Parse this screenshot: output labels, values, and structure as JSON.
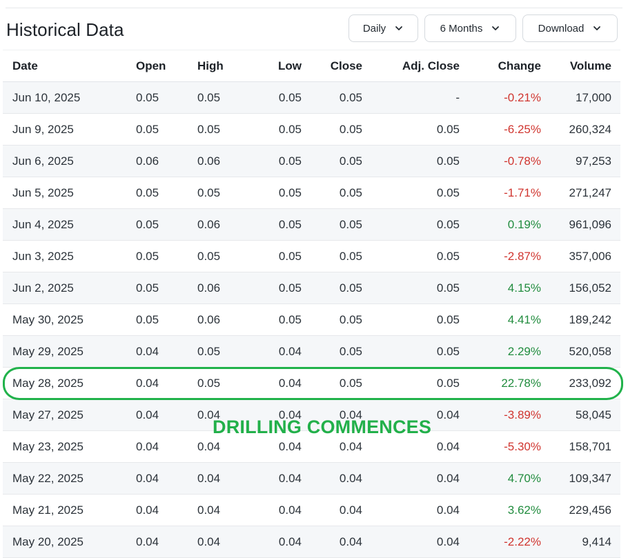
{
  "header": {
    "title": "Historical Data",
    "frequency_label": "Daily",
    "range_label": "6 Months",
    "download_label": "Download"
  },
  "table": {
    "columns": [
      "Date",
      "Open",
      "High",
      "Low",
      "Close",
      "Adj. Close",
      "Change",
      "Volume"
    ],
    "rows": [
      {
        "date": "Jun 10, 2025",
        "open": "0.05",
        "high": "0.05",
        "low": "0.05",
        "close": "0.05",
        "adj_close": "-",
        "change": "-0.21%",
        "volume": "17,000"
      },
      {
        "date": "Jun 9, 2025",
        "open": "0.05",
        "high": "0.05",
        "low": "0.05",
        "close": "0.05",
        "adj_close": "0.05",
        "change": "-6.25%",
        "volume": "260,324"
      },
      {
        "date": "Jun 6, 2025",
        "open": "0.06",
        "high": "0.06",
        "low": "0.05",
        "close": "0.05",
        "adj_close": "0.05",
        "change": "-0.78%",
        "volume": "97,253"
      },
      {
        "date": "Jun 5, 2025",
        "open": "0.05",
        "high": "0.05",
        "low": "0.05",
        "close": "0.05",
        "adj_close": "0.05",
        "change": "-1.71%",
        "volume": "271,247"
      },
      {
        "date": "Jun 4, 2025",
        "open": "0.05",
        "high": "0.06",
        "low": "0.05",
        "close": "0.05",
        "adj_close": "0.05",
        "change": "0.19%",
        "volume": "961,096"
      },
      {
        "date": "Jun 3, 2025",
        "open": "0.05",
        "high": "0.05",
        "low": "0.05",
        "close": "0.05",
        "adj_close": "0.05",
        "change": "-2.87%",
        "volume": "357,006"
      },
      {
        "date": "Jun 2, 2025",
        "open": "0.05",
        "high": "0.06",
        "low": "0.05",
        "close": "0.05",
        "adj_close": "0.05",
        "change": "4.15%",
        "volume": "156,052"
      },
      {
        "date": "May 30, 2025",
        "open": "0.05",
        "high": "0.06",
        "low": "0.05",
        "close": "0.05",
        "adj_close": "0.05",
        "change": "4.41%",
        "volume": "189,242"
      },
      {
        "date": "May 29, 2025",
        "open": "0.04",
        "high": "0.05",
        "low": "0.04",
        "close": "0.05",
        "adj_close": "0.05",
        "change": "2.29%",
        "volume": "520,058"
      },
      {
        "date": "May 28, 2025",
        "open": "0.04",
        "high": "0.05",
        "low": "0.04",
        "close": "0.05",
        "adj_close": "0.05",
        "change": "22.78%",
        "volume": "233,092"
      },
      {
        "date": "May 27, 2025",
        "open": "0.04",
        "high": "0.04",
        "low": "0.04",
        "close": "0.04",
        "adj_close": "0.04",
        "change": "-3.89%",
        "volume": "58,045"
      },
      {
        "date": "May 23, 2025",
        "open": "0.04",
        "high": "0.04",
        "low": "0.04",
        "close": "0.04",
        "adj_close": "0.04",
        "change": "-5.30%",
        "volume": "158,701"
      },
      {
        "date": "May 22, 2025",
        "open": "0.04",
        "high": "0.04",
        "low": "0.04",
        "close": "0.04",
        "adj_close": "0.04",
        "change": "4.70%",
        "volume": "109,347"
      },
      {
        "date": "May 21, 2025",
        "open": "0.04",
        "high": "0.04",
        "low": "0.04",
        "close": "0.04",
        "adj_close": "0.04",
        "change": "3.62%",
        "volume": "229,456"
      },
      {
        "date": "May 20, 2025",
        "open": "0.04",
        "high": "0.04",
        "low": "0.04",
        "close": "0.04",
        "adj_close": "0.04",
        "change": "-2.22%",
        "volume": "9,414"
      }
    ]
  },
  "annotation": {
    "text": "DRILLING COMMENCES",
    "color": "#22b04a"
  },
  "colors": {
    "negative": "#d0352f",
    "positive": "#218c3e",
    "highlight": "#21b24b"
  },
  "icons": {
    "dropdown": "chevron-down-icon"
  }
}
